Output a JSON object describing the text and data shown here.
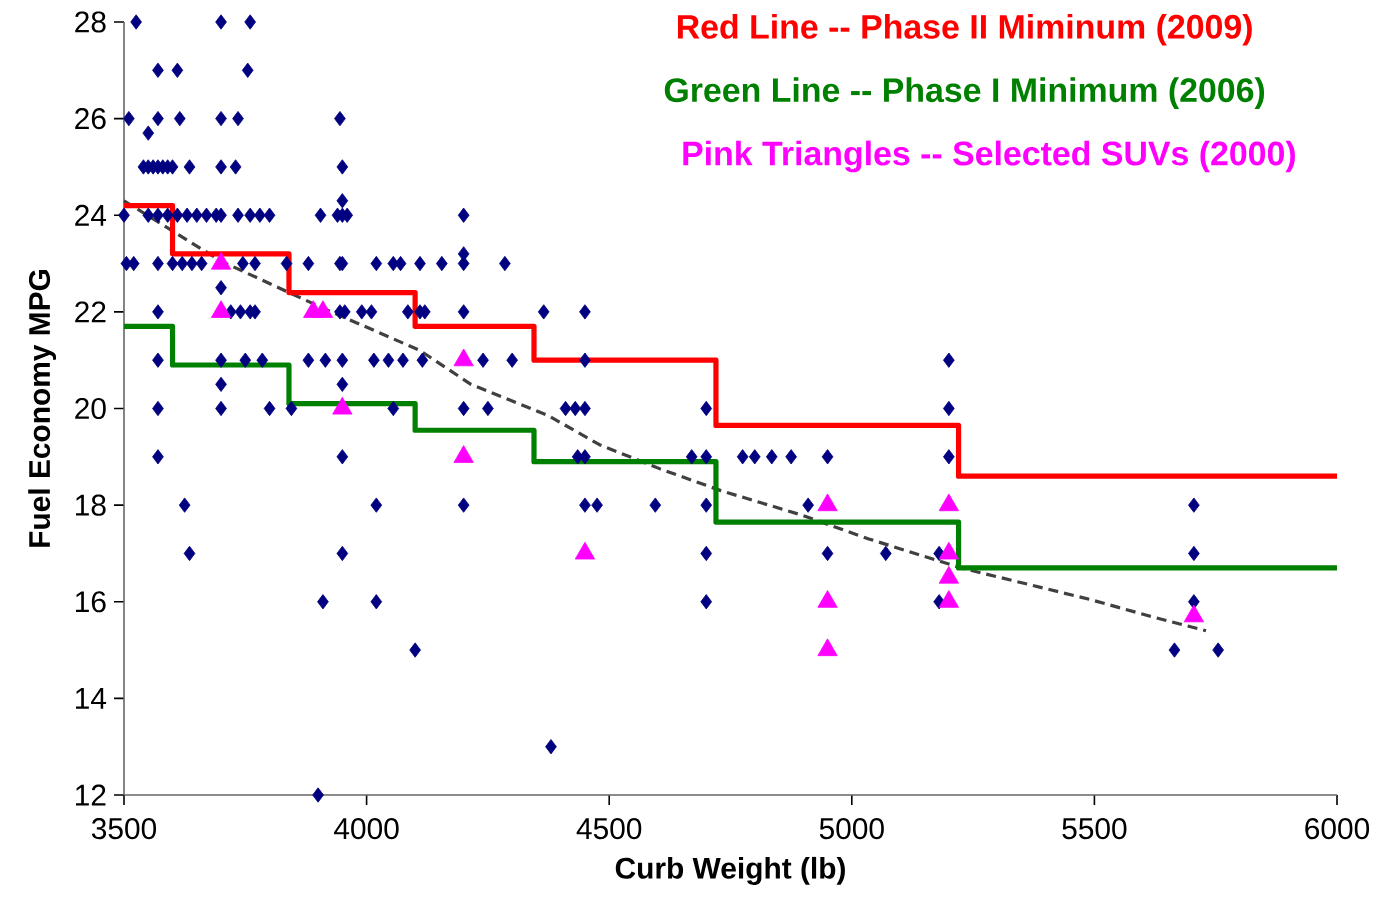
{
  "chart_data": {
    "type": "scatter",
    "xlabel": "Curb Weight (lb)",
    "ylabel": "Fuel Economy MPG",
    "xlim": [
      3500,
      6000
    ],
    "ylim": [
      12,
      28
    ],
    "xticks": [
      3500,
      4000,
      4500,
      5000,
      5500,
      6000
    ],
    "yticks": [
      12,
      14,
      16,
      18,
      20,
      22,
      24,
      26,
      28
    ],
    "grid": false,
    "legend": "top right",
    "series": [
      {
        "marker": "diamond",
        "color": "#000080",
        "x": [
          3525,
          3700,
          3760,
          3570,
          3610,
          3755,
          3510,
          3570,
          3615,
          3700,
          3735,
          3945,
          3550,
          3540,
          3550,
          3560,
          3570,
          3580,
          3590,
          3600,
          3635,
          3700,
          3730,
          3950,
          3950,
          3500,
          3550,
          3570,
          3590,
          3610,
          3630,
          3650,
          3670,
          3690,
          3700,
          3735,
          3760,
          3780,
          3800,
          3905,
          3940,
          3950,
          3960,
          4200,
          4200,
          3505,
          3520,
          3570,
          3600,
          3620,
          3640,
          3660,
          3745,
          3770,
          3835,
          3880,
          3945,
          3950,
          4020,
          4055,
          4070,
          4110,
          4155,
          4200,
          4285,
          3700,
          3570,
          3720,
          3740,
          3760,
          3770,
          3945,
          3955,
          3990,
          4010,
          4085,
          4110,
          4120,
          4200,
          4365,
          4450,
          3570,
          3700,
          3750,
          3785,
          3880,
          3915,
          3950,
          4015,
          4045,
          4075,
          4115,
          4240,
          4300,
          4450,
          5200,
          3700,
          3950,
          3570,
          3700,
          3800,
          3845,
          4055,
          4200,
          4250,
          4410,
          4430,
          4450,
          4700,
          5200,
          3570,
          3950,
          4435,
          4450,
          4670,
          4700,
          4775,
          4800,
          4835,
          4875,
          4950,
          5200,
          3625,
          4020,
          4200,
          4450,
          4475,
          4595,
          4700,
          4910,
          5705,
          3635,
          3950,
          4700,
          4950,
          5070,
          5180,
          5705,
          3910,
          4020,
          4700,
          5180,
          5705,
          4100,
          5665,
          5755,
          4380,
          3900
        ],
        "values": [
          28,
          28,
          28,
          27,
          27,
          27,
          26,
          26,
          26,
          26,
          26,
          26,
          25.7,
          25,
          25,
          25,
          25,
          25,
          25,
          25,
          25,
          25,
          25,
          25,
          24.3,
          24,
          24,
          24,
          24,
          24,
          24,
          24,
          24,
          24,
          24,
          24,
          24,
          24,
          24,
          24,
          24,
          24,
          24,
          24,
          23.2,
          23,
          23,
          23,
          23,
          23,
          23,
          23,
          23,
          23,
          23,
          23,
          23,
          23,
          23,
          23,
          23,
          23,
          23,
          23,
          23,
          22.5,
          22,
          22,
          22,
          22,
          22,
          22,
          22,
          22,
          22,
          22,
          22,
          22,
          22,
          22,
          22,
          21,
          21,
          21,
          21,
          21,
          21,
          21,
          21,
          21,
          21,
          21,
          21,
          21,
          21,
          21,
          20.5,
          20.5,
          20,
          20,
          20,
          20,
          20,
          20,
          20,
          20,
          20,
          20,
          20,
          20,
          19,
          19,
          19,
          19,
          19,
          19,
          19,
          19,
          19,
          19,
          19,
          19,
          18,
          18,
          18,
          18,
          18,
          18,
          18,
          18,
          18,
          17,
          17,
          17,
          17,
          17,
          17,
          17,
          16,
          16,
          16,
          16,
          16,
          15,
          15,
          15,
          13,
          12
        ]
      },
      {
        "type": "line",
        "line_style": "dashed",
        "marker": "none",
        "color": "#404040",
        "x": [
          3500,
          3700,
          3905,
          4110,
          4215,
          4375,
          4480,
          4605,
          4730,
          4895,
          5035,
          5225,
          5490,
          5615,
          5730
        ],
        "values": [
          24.3,
          23.05,
          22.1,
          21.2,
          20.5,
          19.85,
          19.25,
          18.75,
          18.3,
          17.8,
          17.3,
          16.7,
          16.05,
          15.7,
          15.4
        ]
      },
      {
        "type": "step",
        "name": "Red Line -- Phase II Miminum (2009)",
        "marker": "none",
        "color": "#ff0000",
        "x": [
          3500,
          3600,
          3840,
          4100,
          4345,
          4720,
          5220,
          6000
        ],
        "values": [
          24.2,
          23.2,
          22.4,
          21.7,
          21.0,
          19.65,
          18.6,
          18.6
        ]
      },
      {
        "type": "step",
        "name": "Green Line -- Phase I Minimum (2006)",
        "marker": "none",
        "color": "#008000",
        "x": [
          3500,
          3600,
          3840,
          4100,
          4345,
          4720,
          5220,
          6000
        ],
        "values": [
          21.7,
          20.9,
          20.1,
          19.55,
          18.9,
          17.65,
          16.7,
          16.7
        ]
      },
      {
        "name": "Pink Triangles -- Selected SUVs (2000)",
        "marker": "triangle",
        "color": "#ff00ff",
        "x": [
          3700,
          3700,
          3890,
          3910,
          3950,
          4200,
          4200,
          4450,
          4950,
          4950,
          4950,
          5200,
          5200,
          5200,
          5200,
          5705
        ],
        "values": [
          23,
          22,
          22,
          22,
          20,
          21,
          19,
          17,
          18,
          16,
          15,
          18,
          17,
          16.5,
          16,
          15.7
        ]
      }
    ]
  }
}
